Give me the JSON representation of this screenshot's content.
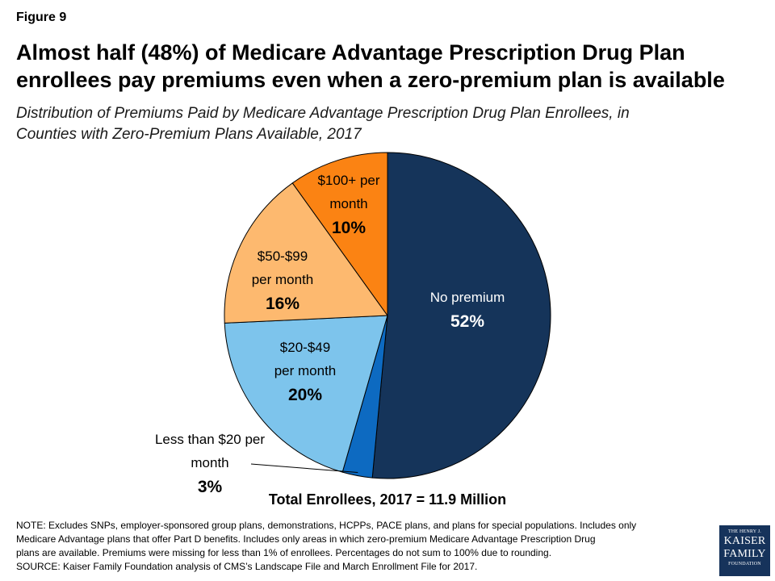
{
  "figure_label": "Figure 9",
  "title_lines": [
    "Almost half (48%) of Medicare Advantage Prescription Drug Plan",
    "enrollees pay premiums even when a zero-premium plan is available"
  ],
  "subtitle_lines": [
    "Distribution of Premiums Paid by Medicare Advantage Prescription Drug Plan Enrollees, in",
    "Counties with Zero-Premium Plans Available, 2017"
  ],
  "chart_data": {
    "type": "pie",
    "slices": [
      {
        "key": "no-premium",
        "label_lines": [
          "No premium"
        ],
        "percent_label": "52%",
        "value": 52,
        "color": "#15345a",
        "text_color": "#ffffff"
      },
      {
        "key": "less-than-20",
        "label_lines": [
          "Less than $20 per",
          "month"
        ],
        "percent_label": "3%",
        "value": 3,
        "color": "#0d6ac1",
        "text_color": "#000000"
      },
      {
        "key": "20-49",
        "label_lines": [
          "$20-$49",
          "per month"
        ],
        "percent_label": "20%",
        "value": 20,
        "color": "#7dc4ec",
        "text_color": "#000000"
      },
      {
        "key": "50-99",
        "label_lines": [
          "$50-$99",
          "per month"
        ],
        "percent_label": "16%",
        "value": 16,
        "color": "#fdb96f",
        "text_color": "#000000"
      },
      {
        "key": "100-plus",
        "label_lines": [
          "$100+ per",
          "month"
        ],
        "percent_label": "10%",
        "value": 10,
        "color": "#fb8313",
        "text_color": "#000000"
      }
    ],
    "total_label": "Total Enrollees, 2017 = 11.9 Million"
  },
  "note_lines": [
    "NOTE:  Excludes SNPs, employer-sponsored group plans, demonstrations, HCPPs, PACE plans, and plans for special populations. Includes only",
    "Medicare  Advantage plans that offer Part D benefits. Includes only areas in which zero-premium Medicare  Advantage Prescription Drug",
    "plans are available. Premiums were missing for less than 1%  of enrollees. Percentages do not sum to 100%  due to rounding.",
    "SOURCE:  Kaiser Family Foundation analysis of CMS’s Landscape File and March  Enrollment File for 2017."
  ],
  "logo": {
    "line1": "THE HENRY J.",
    "line2": "KAISER",
    "line3": "FAMILY",
    "line4": "FOUNDATION"
  }
}
